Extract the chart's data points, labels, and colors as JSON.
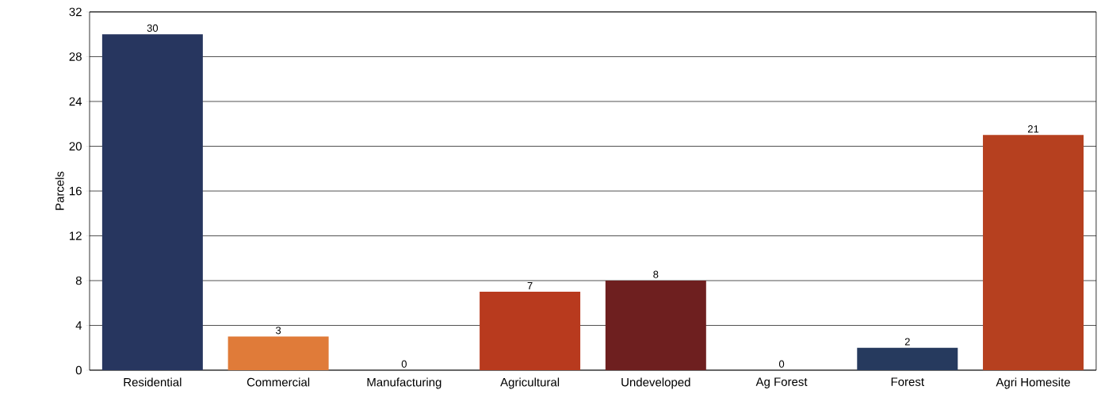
{
  "chart_data": {
    "type": "bar",
    "ylabel": "Parcels",
    "categories": [
      "Residential",
      "Commercial",
      "Manufacturing",
      "Agricultural",
      "Undeveloped",
      "Ag Forest",
      "Forest",
      "Agri Homesite"
    ],
    "values": [
      30,
      3,
      0,
      7,
      8,
      0,
      2,
      21
    ],
    "colors": [
      "#27365f",
      "#e07b39",
      "#b83a1e",
      "#b83a1e",
      "#6e1f1f",
      "#263a5e",
      "#263a5e",
      "#b6401f"
    ],
    "ylim": [
      0,
      32
    ],
    "yticks": [
      0,
      4,
      8,
      12,
      16,
      20,
      24,
      28,
      32
    ],
    "grid": "y",
    "data_labels": true
  }
}
